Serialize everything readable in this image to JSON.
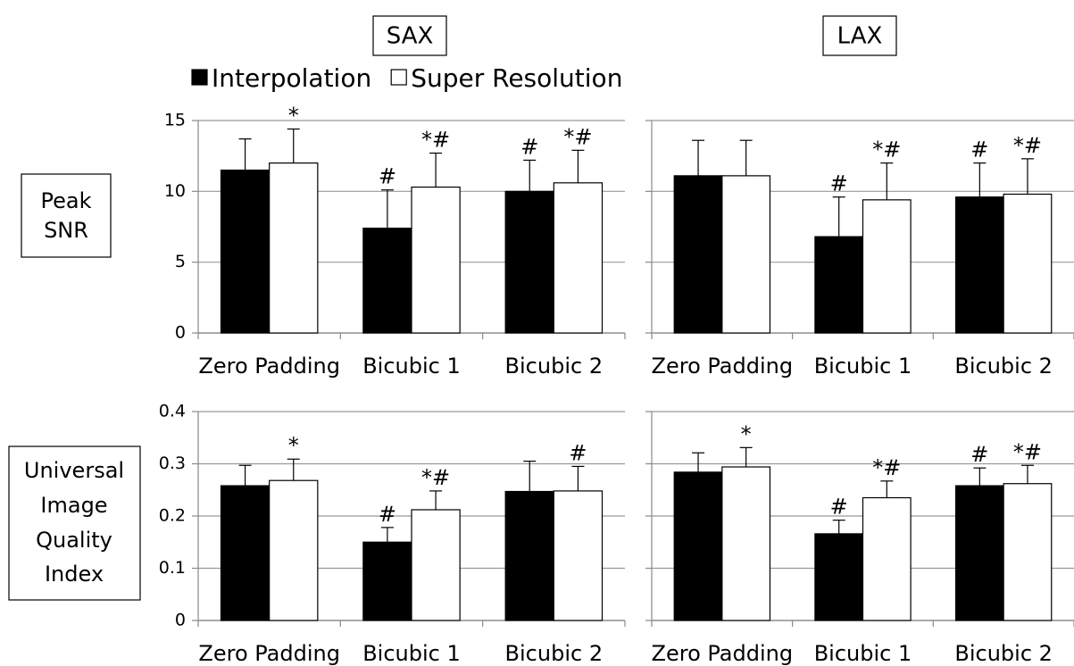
{
  "column_titles": [
    "SAX",
    "LAX"
  ],
  "row_labels": [
    [
      "Peak",
      "SNR"
    ],
    [
      "Universal",
      "Image",
      "Quality",
      "Index"
    ]
  ],
  "chart_data": [
    {
      "type": "bar",
      "categories": [
        "Zero Padding",
        "Bicubic 1",
        "Bicubic 2"
      ],
      "series": [
        {
          "name": "Interpolation",
          "color": "#000000",
          "values": [
            11.5,
            7.4,
            10.0
          ],
          "errors": [
            2.2,
            2.7,
            2.2
          ],
          "annotations": [
            null,
            "#",
            "#"
          ]
        },
        {
          "name": "Super Resolution",
          "color": "#ffffff",
          "values": [
            12.0,
            10.3,
            10.6
          ],
          "errors": [
            2.4,
            2.4,
            2.3
          ],
          "annotations": [
            "*",
            "*#",
            "*#"
          ]
        }
      ],
      "ylim": [
        0,
        15
      ],
      "yticks": [
        0,
        5,
        10,
        15
      ],
      "grid": true,
      "tick_labels": true
    },
    {
      "type": "bar",
      "categories": [
        "Zero Padding",
        "Bicubic 1",
        "Bicubic 2"
      ],
      "series": [
        {
          "color": "#000000",
          "values": [
            11.1,
            6.8,
            9.6
          ],
          "errors": [
            2.5,
            2.8,
            2.4
          ],
          "annotations": [
            null,
            "#",
            "#"
          ]
        },
        {
          "color": "#ffffff",
          "values": [
            11.1,
            9.4,
            9.8
          ],
          "errors": [
            2.5,
            2.6,
            2.5
          ],
          "annotations": [
            null,
            "*#",
            "*#"
          ]
        }
      ],
      "ylim": [
        0,
        15
      ],
      "yticks": [
        0,
        5,
        10,
        15
      ],
      "grid": true,
      "tick_labels": false
    },
    {
      "type": "bar",
      "categories": [
        "Zero Padding",
        "Bicubic 1",
        "Bicubic 2"
      ],
      "series": [
        {
          "color": "#000000",
          "values": [
            0.258,
            0.15,
            0.247
          ],
          "errors": [
            0.039,
            0.028,
            0.058
          ],
          "annotations": [
            null,
            "#",
            null
          ]
        },
        {
          "color": "#ffffff",
          "values": [
            0.268,
            0.212,
            0.248
          ],
          "errors": [
            0.041,
            0.036,
            0.047
          ],
          "annotations": [
            "*",
            "*#",
            "#"
          ]
        }
      ],
      "ylim": [
        0,
        0.4
      ],
      "yticks": [
        0,
        0.1,
        0.2,
        0.3,
        0.4
      ],
      "grid": true,
      "tick_labels": true
    },
    {
      "type": "bar",
      "categories": [
        "Zero Padding",
        "Bicubic 1",
        "Bicubic 2"
      ],
      "series": [
        {
          "color": "#000000",
          "values": [
            0.284,
            0.166,
            0.258
          ],
          "errors": [
            0.037,
            0.026,
            0.034
          ],
          "annotations": [
            null,
            "#",
            "#"
          ]
        },
        {
          "color": "#ffffff",
          "values": [
            0.294,
            0.235,
            0.262
          ],
          "errors": [
            0.037,
            0.032,
            0.035
          ],
          "annotations": [
            "*",
            "*#",
            "*#"
          ]
        }
      ],
      "ylim": [
        0,
        0.4
      ],
      "yticks": [
        0,
        0.1,
        0.2,
        0.3,
        0.4
      ],
      "grid": true,
      "tick_labels": false
    }
  ]
}
